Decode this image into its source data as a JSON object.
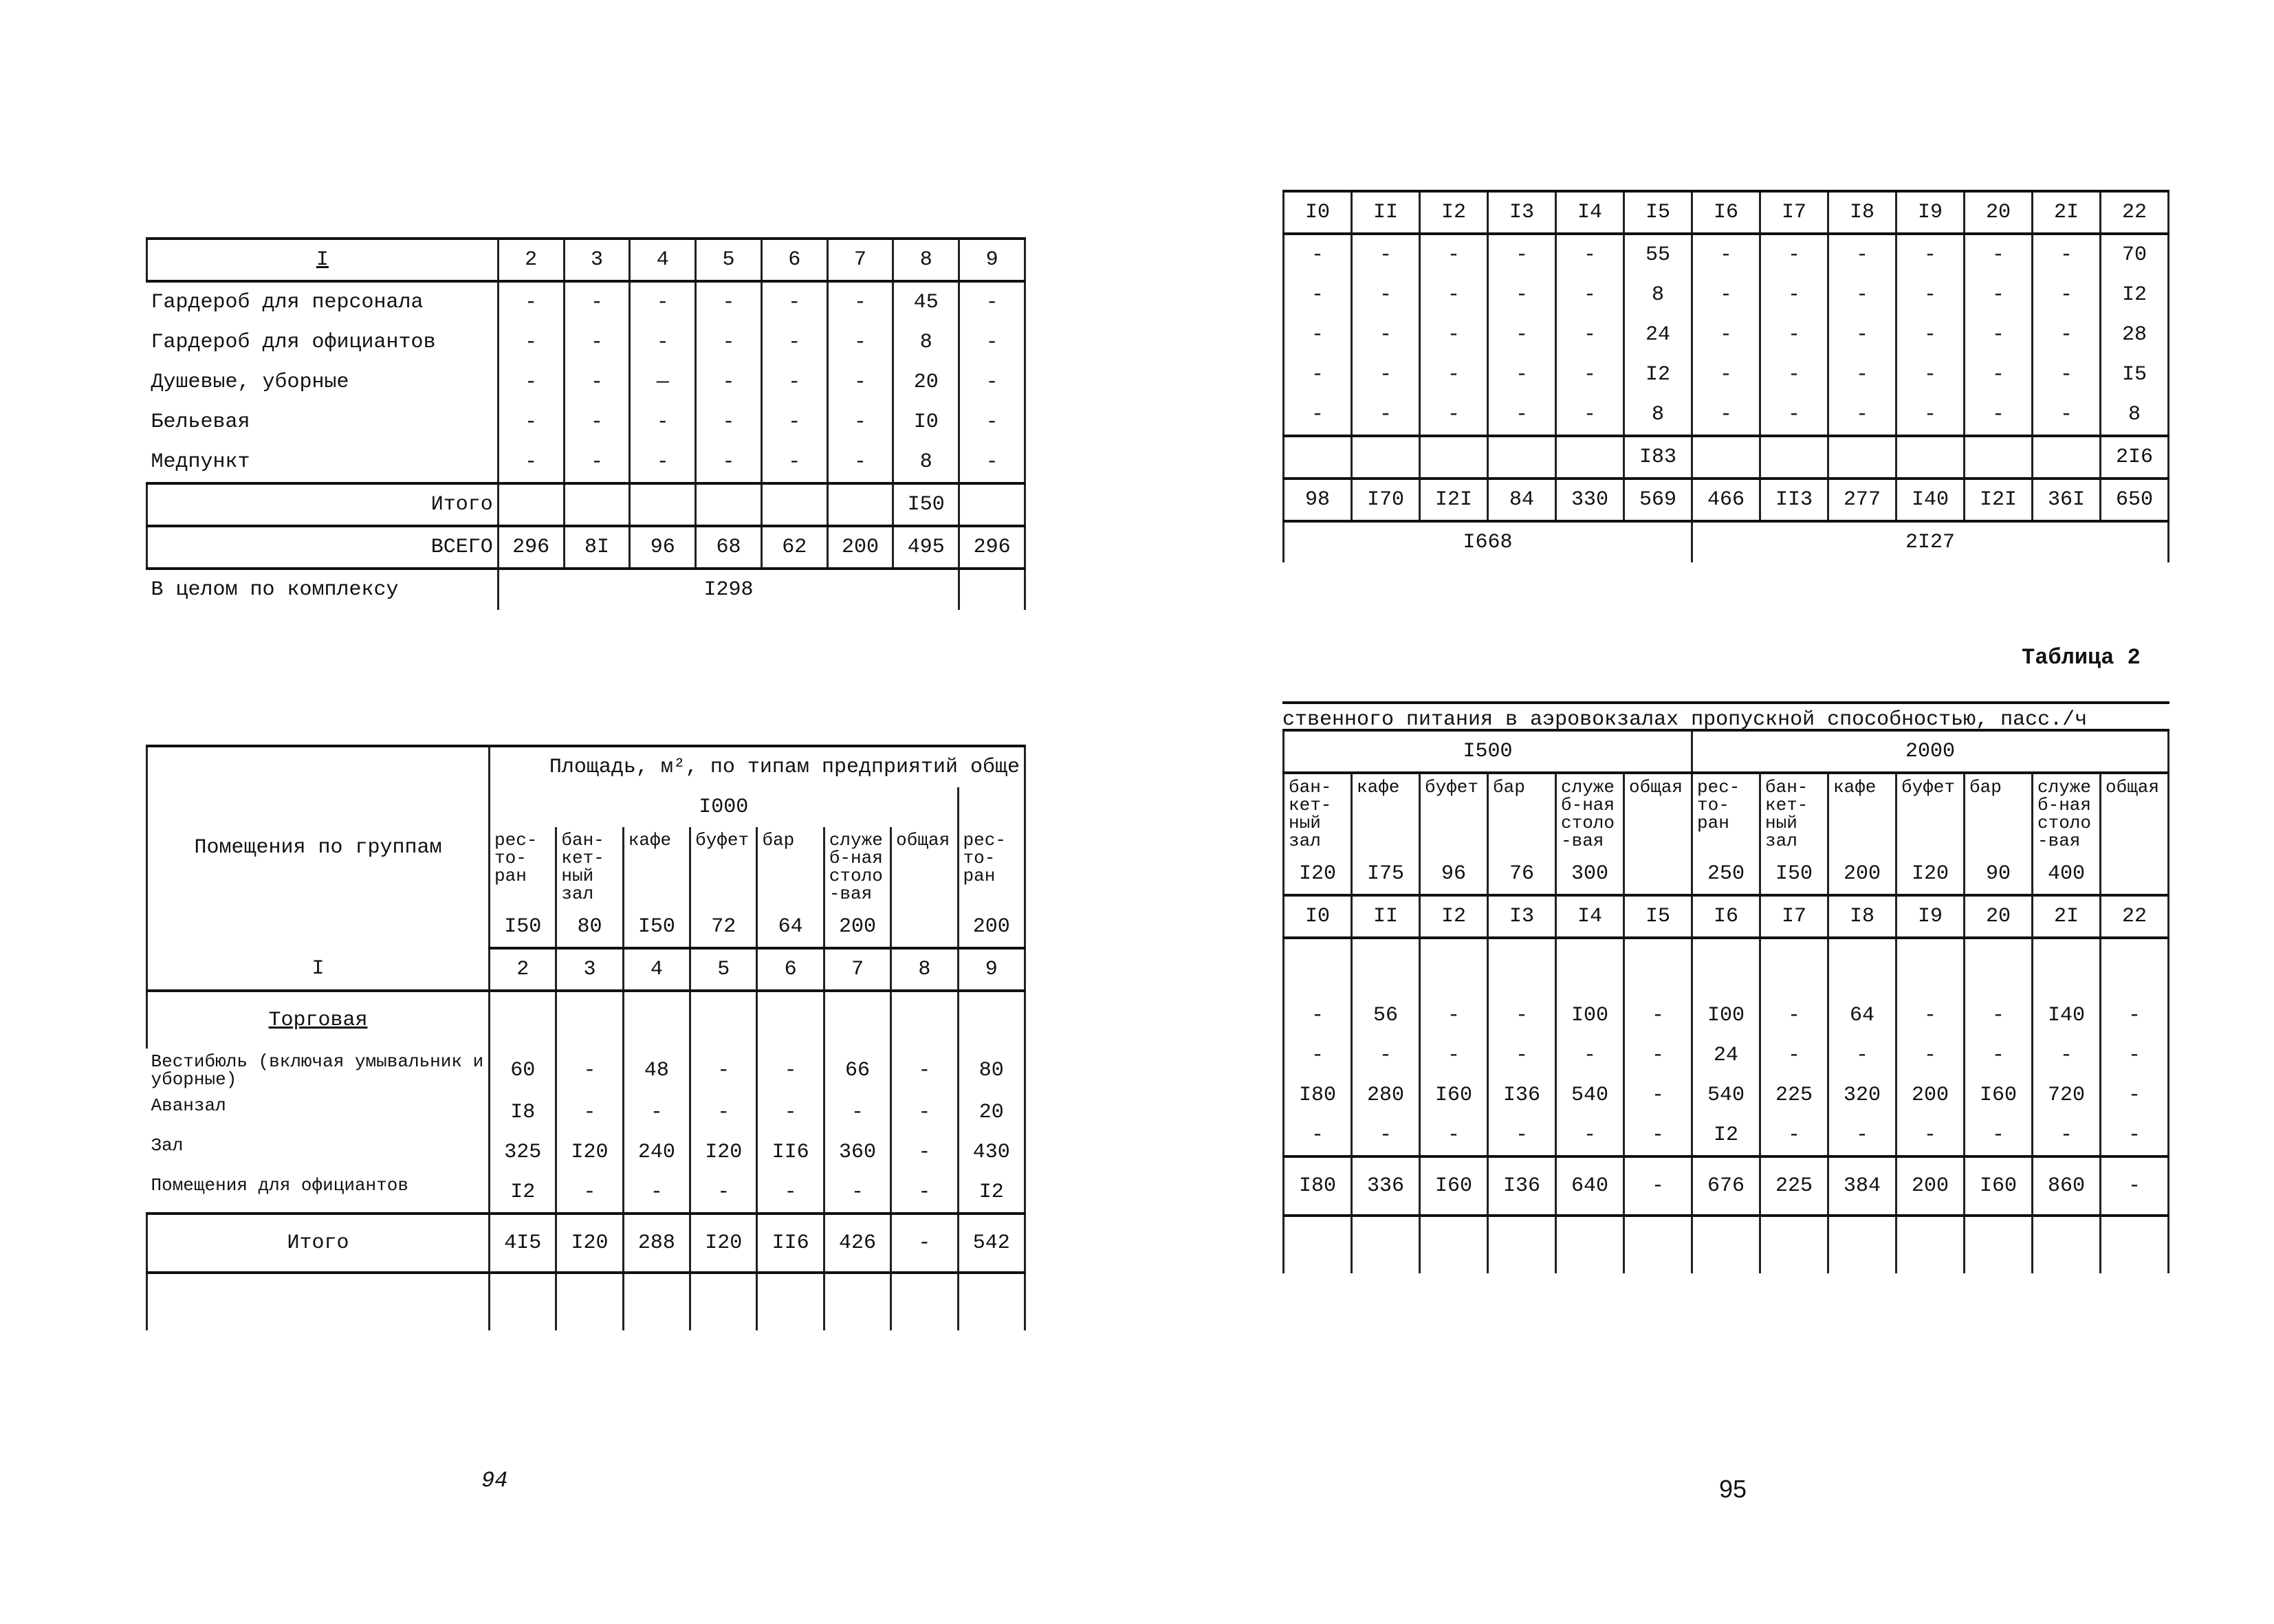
{
  "left_page": {
    "table_top": {
      "header": [
        "I",
        "2",
        "3",
        "4",
        "5",
        "6",
        "7",
        "8",
        "9"
      ],
      "rows": [
        [
          "Гардероб для персонала",
          "-",
          "-",
          "-",
          "-",
          "-",
          "-",
          "45",
          "-"
        ],
        [
          "Гардероб для официантов",
          "-",
          "-",
          "-",
          "-",
          "-",
          "-",
          "8",
          "-"
        ],
        [
          "Душевые, уборные",
          "-",
          "-",
          "—",
          "-",
          "-",
          "-",
          "20",
          "-"
        ],
        [
          "Бельевая",
          "-",
          "-",
          "-",
          "-",
          "-",
          "-",
          "I0",
          "-"
        ],
        [
          "Медпункт",
          "-",
          "-",
          "-",
          "-",
          "-",
          "-",
          "8",
          "-"
        ],
        [
          "Итого",
          null,
          null,
          null,
          null,
          null,
          null,
          "I50",
          null
        ],
        [
          "ВСЕГО",
          "296",
          "8I",
          "96",
          "68",
          "62",
          "200",
          "495",
          "296"
        ]
      ],
      "total_label": "В целом по комплексу",
      "total_value": "I298"
    },
    "table_bottom": {
      "group_heading": "Помещения по группам",
      "area_heading": "Площадь, м², по типам предприятий обще",
      "capacity_group": "I000",
      "types": [
        "рес-то-ран",
        "бан-кет-ный зал",
        "кафе",
        "буфет",
        "бар",
        "служеб-ная столо-вая",
        "общая",
        "рес-то-ран"
      ],
      "capacities": [
        "I50",
        "80",
        "I50",
        "72",
        "64",
        "200",
        null,
        "200"
      ],
      "column_numbers": [
        "I",
        "2",
        "3",
        "4",
        "5",
        "6",
        "7",
        "8",
        "9"
      ],
      "section": "Торговая",
      "rows": [
        [
          "Вестибюль (включая умывальник и уборные)",
          "60",
          "-",
          "48",
          "-",
          "-",
          "66",
          "-",
          "80"
        ],
        [
          "Аванзал",
          "I8",
          "-",
          "-",
          "-",
          "-",
          "-",
          "-",
          "20"
        ],
        [
          "Зал",
          "325",
          "I20",
          "240",
          "I20",
          "II6",
          "360",
          "-",
          "430"
        ],
        [
          "Помещения для официантов",
          "I2",
          "-",
          "-",
          "-",
          "-",
          "-",
          "-",
          "I2"
        ]
      ],
      "total": [
        "Итого",
        "4I5",
        "I20",
        "288",
        "I20",
        "II6",
        "426",
        "-",
        "542"
      ]
    },
    "page_number": "94"
  },
  "right_page": {
    "table_top": {
      "header": [
        "I0",
        "II",
        "I2",
        "I3",
        "I4",
        "I5",
        "I6",
        "I7",
        "I8",
        "I9",
        "20",
        "2I",
        "22"
      ],
      "rows": [
        [
          "-",
          "-",
          "-",
          "-",
          "-",
          "55",
          "-",
          "-",
          "-",
          "-",
          "-",
          "-",
          "70"
        ],
        [
          "-",
          "-",
          "-",
          "-",
          "-",
          "8",
          "-",
          "-",
          "-",
          "-",
          "-",
          "-",
          "I2"
        ],
        [
          "-",
          "-",
          "-",
          "-",
          "-",
          "24",
          "-",
          "-",
          "-",
          "-",
          "-",
          "-",
          "28"
        ],
        [
          "-",
          "-",
          "-",
          "-",
          "-",
          "I2",
          "-",
          "-",
          "-",
          "-",
          "-",
          "-",
          "I5"
        ],
        [
          "-",
          "-",
          "-",
          "-",
          "-",
          "8",
          "-",
          "-",
          "-",
          "-",
          "-",
          "-",
          "8"
        ],
        [
          null,
          null,
          null,
          null,
          null,
          "I83",
          null,
          null,
          null,
          null,
          null,
          null,
          "2I6"
        ],
        [
          "98",
          "I70",
          "I2I",
          "84",
          "330",
          "569",
          "466",
          "II3",
          "277",
          "I40",
          "I2I",
          "36I",
          "650"
        ]
      ],
      "group_totals": [
        "I668",
        "2I27"
      ]
    },
    "table_caption": "Таблица 2",
    "table_bottom": {
      "heading": "ственного питания в аэровокзалах пропускной способностью, пасс./ч",
      "capacity_groups": [
        "I500",
        "2000"
      ],
      "types": [
        "бан-кет-ный зал",
        "кафе",
        "буфет",
        "бар",
        "служеб-ная столо-вая",
        "общая",
        "рес-то-ран",
        "бан-кет-ный зал",
        "кафе",
        "буфет",
        "бар",
        "служеб-ная столо-вая",
        "общая"
      ],
      "capacities": [
        "I20",
        "I75",
        "96",
        "76",
        "300",
        null,
        "250",
        "I50",
        "200",
        "I20",
        "90",
        "400",
        null
      ],
      "column_numbers": [
        "I0",
        "II",
        "I2",
        "I3",
        "I4",
        "I5",
        "I6",
        "I7",
        "I8",
        "I9",
        "20",
        "2I",
        "22"
      ],
      "rows": [
        [
          "-",
          "56",
          "-",
          "-",
          "I00",
          "-",
          "I00",
          "-",
          "64",
          "-",
          "-",
          "I40",
          "-"
        ],
        [
          "-",
          "-",
          "-",
          "-",
          "-",
          "-",
          "24",
          "-",
          "-",
          "-",
          "-",
          "-",
          "-"
        ],
        [
          "I80",
          "280",
          "I60",
          "I36",
          "540",
          "-",
          "540",
          "225",
          "320",
          "200",
          "I60",
          "720",
          "-"
        ],
        [
          "-",
          "-",
          "-",
          "-",
          "-",
          "-",
          "I2",
          "-",
          "-",
          "-",
          "-",
          "-",
          "-"
        ]
      ],
      "total": [
        "I80",
        "336",
        "I60",
        "I36",
        "640",
        "-",
        "676",
        "225",
        "384",
        "200",
        "I60",
        "860",
        "-"
      ]
    },
    "page_number": "95"
  }
}
